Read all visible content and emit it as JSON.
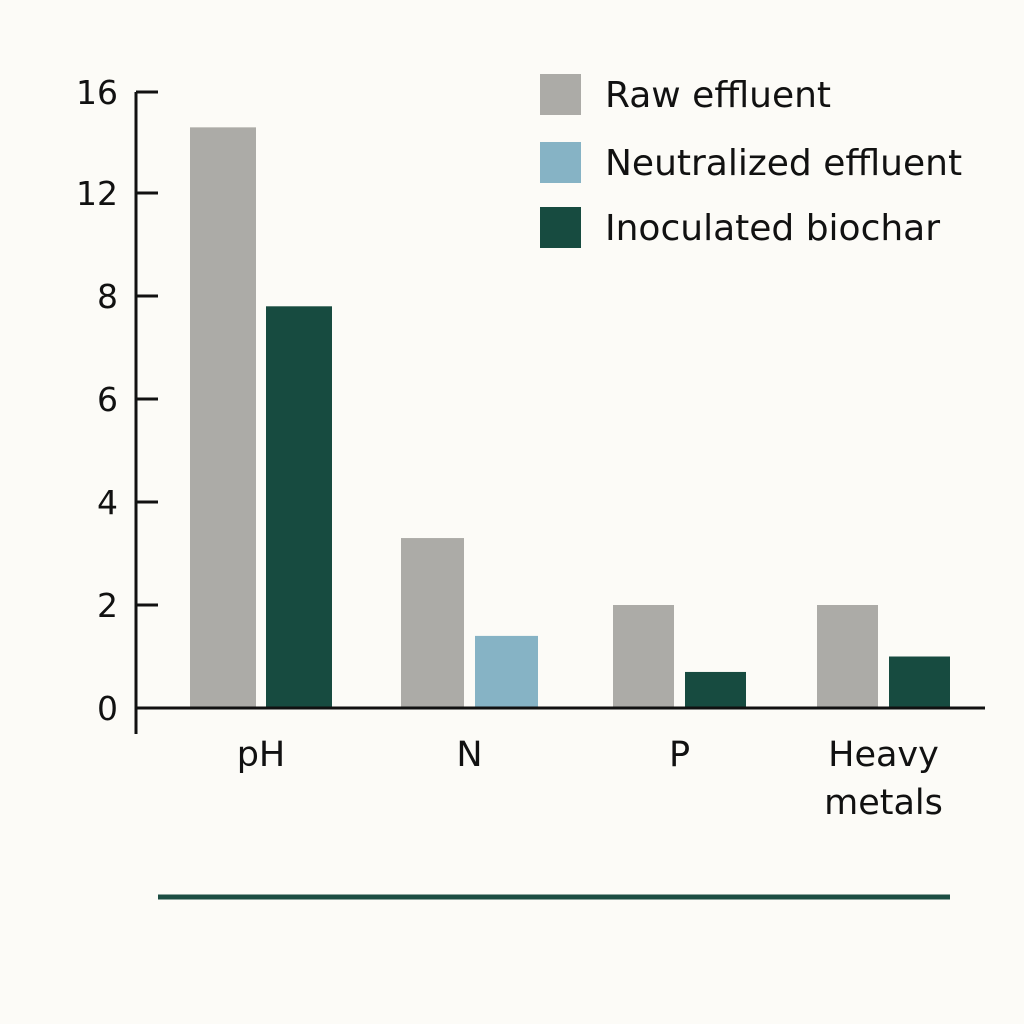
{
  "chart_data": {
    "type": "bar",
    "categories": [
      [
        "pH"
      ],
      [
        "N"
      ],
      [
        "P"
      ],
      [
        "Heavy",
        "metals"
      ]
    ],
    "series": [
      {
        "name": "Raw effluent",
        "color": "#acaba7",
        "values": [
          14.6,
          3.3,
          2.0,
          2.0
        ]
      },
      {
        "name": "Neutralized effluent",
        "color": "#86b3c5",
        "values": [
          null,
          1.4,
          null,
          null
        ]
      },
      {
        "name": "Inoculated biochar",
        "color": "#174b40",
        "values": [
          7.8,
          null,
          0.7,
          1.0
        ]
      }
    ],
    "yticks": [
      "0",
      "2",
      "4",
      "6",
      "8",
      "12",
      "16"
    ],
    "ylim": [
      0,
      16
    ],
    "legend_position": "top-right",
    "grid": false,
    "title": "",
    "xlabel": "",
    "ylabel": "",
    "axis_color": "#111111",
    "accent_line_color": "#1c4d42"
  }
}
